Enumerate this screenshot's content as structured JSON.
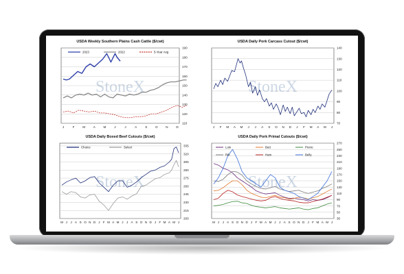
{
  "chart_data": [
    {
      "type": "line",
      "title": "USDA Weekly Southern Plains Cash Cattle ($/cwt)",
      "categories": [
        "J",
        "F",
        "M",
        "A",
        "M",
        "J",
        "J",
        "A",
        "S",
        "O",
        "N",
        "D"
      ],
      "ylim": [
        110,
        190
      ],
      "yticks": [
        110,
        120,
        130,
        140,
        150,
        160,
        170,
        180,
        190
      ],
      "watermark": "StoneX",
      "legend": "top",
      "series": [
        {
          "name": "2023",
          "color": "#2b3da8",
          "style": "solid",
          "x": [
            0,
            0.3,
            0.6,
            1,
            1.4,
            1.8,
            2.2,
            2.6,
            3,
            3.4,
            3.8,
            4.2,
            4.6,
            5,
            5.2,
            5.5
          ],
          "values": [
            157,
            156,
            157,
            161,
            165,
            163,
            170,
            173,
            170,
            174,
            178,
            184,
            175,
            184,
            180,
            176
          ]
        },
        {
          "name": "2022",
          "color": "#8a8a8a",
          "style": "solid",
          "x": [
            0,
            0.4,
            0.8,
            1.2,
            1.6,
            2,
            2.4,
            2.8,
            3.2,
            3.6,
            4,
            4.4,
            4.8,
            5.2,
            5.6,
            6,
            6.4,
            6.8,
            7.2,
            7.6,
            8,
            8.4,
            8.8,
            9.2,
            9.6,
            10,
            10.4,
            10.8,
            11.2,
            11.6,
            11.9
          ],
          "values": [
            137,
            139,
            137,
            140,
            141,
            140,
            142,
            140,
            141,
            138,
            141,
            138,
            137,
            141,
            140,
            139,
            141,
            140,
            141,
            143,
            143,
            145,
            146,
            148,
            151,
            153,
            154,
            154,
            155,
            156,
            156
          ]
        },
        {
          "name": "5-Year Avg",
          "color": "#c0302a",
          "style": "dashed",
          "x": [
            0,
            0.5,
            1,
            1.5,
            2,
            2.5,
            3,
            3.5,
            4,
            4.5,
            5,
            5.5,
            6,
            6.5,
            7,
            7.5,
            8,
            8.5,
            9,
            9.5,
            10,
            10.5,
            11,
            11.5,
            11.9
          ],
          "values": [
            122,
            123,
            121,
            124,
            123,
            122,
            123,
            121,
            121,
            120,
            119,
            117,
            116,
            116,
            117,
            117,
            118,
            120,
            120,
            122,
            124,
            127,
            129,
            127,
            129
          ]
        }
      ]
    },
    {
      "type": "line",
      "title": "USDA Daily Pork Carcass Cutout ($/cwt)",
      "categories": [
        "J",
        "F",
        "M",
        "A",
        "M",
        "J",
        "J",
        "A",
        "S",
        "O",
        "N",
        "D",
        "J",
        "F",
        "M",
        "A",
        "M",
        "J"
      ],
      "ylim": [
        70,
        140
      ],
      "yticks": [
        70,
        80,
        90,
        100,
        110,
        120,
        130,
        140
      ],
      "watermark": "StoneX",
      "series": [
        {
          "name": "",
          "color": "#1f2f7a",
          "style": "solid",
          "x": [
            0,
            0.3,
            0.6,
            1,
            1.3,
            1.6,
            2,
            2.3,
            2.6,
            3,
            3.3,
            3.5,
            3.8,
            4,
            4.3,
            4.6,
            5,
            5.3,
            5.6,
            6,
            6.3,
            6.6,
            7,
            7.3,
            7.6,
            8,
            8.3,
            8.6,
            9,
            9.3,
            9.6,
            10,
            10.3,
            10.6,
            11,
            11.3,
            11.6,
            12,
            12.3,
            12.6,
            13,
            13.3,
            13.6,
            14,
            14.3,
            14.6,
            15,
            15.3,
            15.6,
            16,
            16.3,
            16.6,
            17
          ],
          "values": [
            102,
            107,
            104,
            110,
            106,
            112,
            109,
            114,
            119,
            118,
            125,
            130,
            126,
            128,
            121,
            115,
            104,
            108,
            98,
            104,
            96,
            101,
            93,
            90,
            93,
            86,
            89,
            83,
            88,
            84,
            78,
            87,
            81,
            85,
            79,
            85,
            77,
            81,
            84,
            79,
            80,
            76,
            82,
            78,
            83,
            80,
            86,
            83,
            88,
            85,
            91,
            97,
            101
          ]
        }
      ]
    },
    {
      "type": "line",
      "title": "USDA Daily Boxed Beef Cutouts ($/cwt)",
      "categories": [
        "M",
        "J",
        "J",
        "A",
        "S",
        "O",
        "N",
        "D",
        "J",
        "F",
        "M",
        "A",
        "M",
        "J",
        "J",
        "A",
        "S",
        "O",
        "N",
        "D",
        "J",
        "F",
        "M",
        "A",
        "M",
        "J"
      ],
      "ylim": [
        200,
        340
      ],
      "yticks": [
        200,
        215,
        230,
        245,
        260,
        275,
        290,
        305,
        320,
        335
      ],
      "watermark": "StoneX",
      "legend": "top",
      "series": [
        {
          "name": "Choice",
          "color": "#1f2f7a",
          "style": "solid",
          "x": [
            0,
            1,
            2,
            3,
            4,
            5,
            6,
            7,
            8,
            9,
            10,
            11,
            12,
            13,
            14,
            15,
            16,
            17,
            18,
            19,
            20,
            21,
            22,
            23,
            23.5,
            24,
            24.5,
            25
          ],
          "values": [
            262,
            268,
            272,
            275,
            266,
            270,
            276,
            278,
            266,
            258,
            250,
            262,
            270,
            270,
            258,
            262,
            268,
            276,
            282,
            288,
            290,
            295,
            298,
            305,
            310,
            330,
            333,
            322
          ]
        },
        {
          "name": "Select",
          "color": "#9a9a9a",
          "style": "solid",
          "x": [
            0,
            1,
            2,
            3,
            4,
            5,
            6,
            7,
            8,
            9,
            10,
            11,
            12,
            13,
            14,
            15,
            16,
            17,
            18,
            19,
            20,
            21,
            22,
            23,
            23.5,
            24,
            24.5,
            25
          ],
          "values": [
            250,
            245,
            250,
            248,
            240,
            238,
            244,
            245,
            232,
            225,
            215,
            228,
            238,
            240,
            236,
            242,
            246,
            260,
            262,
            268,
            274,
            276,
            282,
            285,
            290,
            300,
            308,
            296
          ]
        }
      ]
    },
    {
      "type": "line",
      "title": "USDA Daily Pork Primal Cutouts ($/cwt)",
      "categories": [
        "M",
        "J",
        "J",
        "A",
        "S",
        "O",
        "N",
        "D",
        "J",
        "F",
        "M",
        "A",
        "M",
        "J",
        "J",
        "A",
        "S",
        "O",
        "N",
        "D",
        "J",
        "F",
        "M",
        "A",
        "M",
        "J"
      ],
      "ylim": [
        30,
        270
      ],
      "yticks": [
        30,
        50,
        70,
        90,
        110,
        130,
        150,
        170,
        190,
        210,
        230,
        250,
        270
      ],
      "watermark": "StoneX",
      "legend": "top",
      "series": [
        {
          "name": "Loin",
          "color": "#6a2a7a",
          "style": "solid",
          "values": [
            205,
            200,
            190,
            185,
            175,
            160,
            150,
            140,
            130,
            118,
            112,
            108,
            110,
            112,
            104,
            98,
            94,
            95,
            92,
            90,
            86,
            90,
            88,
            90,
            96,
            104
          ]
        },
        {
          "name": "Butt",
          "color": "#e0762a",
          "style": "solid",
          "values": [
            118,
            120,
            128,
            140,
            150,
            150,
            138,
            120,
            110,
            104,
            98,
            96,
            100,
            104,
            98,
            96,
            92,
            94,
            98,
            96,
            92,
            96,
            100,
            108,
            116,
            124
          ]
        },
        {
          "name": "Picnic",
          "color": "#3a8a3a",
          "style": "solid",
          "values": [
            70,
            72,
            75,
            80,
            84,
            85,
            80,
            78,
            72,
            68,
            66,
            64,
            66,
            68,
            64,
            62,
            60,
            62,
            64,
            60,
            58,
            62,
            64,
            70,
            76,
            80
          ]
        },
        {
          "name": "Rib",
          "color": "#7a7a7a",
          "style": "solid",
          "values": [
            150,
            148,
            155,
            170,
            180,
            178,
            168,
            150,
            140,
            132,
            126,
            124,
            128,
            132,
            124,
            120,
            116,
            118,
            120,
            114,
            110,
            114,
            118,
            126,
            132,
            140
          ]
        },
        {
          "name": "Ham",
          "color": "#b82020",
          "style": "solid",
          "values": [
            90,
            95,
            110,
            120,
            115,
            105,
            100,
            96,
            92,
            88,
            86,
            88,
            96,
            100,
            94,
            90,
            88,
            86,
            82,
            80,
            80,
            84,
            88,
            92,
            98,
            104
          ]
        },
        {
          "name": "Belly",
          "color": "#3a6ed8",
          "style": "solid",
          "values": [
            140,
            160,
            190,
            230,
            250,
            220,
            180,
            160,
            150,
            140,
            130,
            150,
            170,
            160,
            130,
            120,
            115,
            110,
            100,
            95,
            90,
            100,
            110,
            130,
            150,
            180
          ]
        }
      ]
    }
  ]
}
